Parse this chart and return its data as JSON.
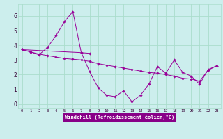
{
  "background_color": "#cceeed",
  "grid_color": "#aaddcc",
  "line_color": "#990099",
  "marker_color": "#990099",
  "xlim": [
    -0.5,
    23.5
  ],
  "ylim": [
    -0.3,
    6.8
  ],
  "yticks": [
    0,
    1,
    2,
    3,
    4,
    5,
    6
  ],
  "xticks": [
    0,
    1,
    2,
    3,
    4,
    5,
    6,
    7,
    8,
    9,
    10,
    11,
    12,
    13,
    14,
    15,
    16,
    17,
    18,
    19,
    20,
    21,
    22,
    23
  ],
  "xlabel": "Windchill (Refroidissement éolien,°C)",
  "series1": {
    "x": [
      0,
      1,
      2,
      3,
      4,
      5,
      6,
      7,
      8
    ],
    "y": [
      3.7,
      3.55,
      3.35,
      3.85,
      4.65,
      5.6,
      6.3,
      3.5,
      3.45
    ]
  },
  "series2": {
    "x": [
      0,
      1,
      2,
      3,
      4,
      5,
      6,
      7,
      8,
      9,
      10,
      11,
      12,
      13,
      14,
      15,
      16,
      17,
      18,
      19,
      20,
      21,
      22,
      23
    ],
    "y": [
      3.7,
      3.55,
      3.4,
      3.3,
      3.2,
      3.1,
      3.05,
      3.0,
      2.9,
      2.75,
      2.65,
      2.55,
      2.45,
      2.35,
      2.25,
      2.15,
      2.1,
      2.0,
      1.9,
      1.75,
      1.7,
      1.55,
      2.3,
      2.6
    ]
  },
  "series3": {
    "x": [
      0,
      7,
      8,
      9,
      10,
      11,
      12,
      13,
      14,
      15,
      16,
      17,
      18,
      19,
      20,
      21,
      22,
      23
    ],
    "y": [
      3.7,
      3.5,
      2.2,
      1.1,
      0.6,
      0.5,
      0.9,
      0.15,
      0.6,
      1.35,
      2.55,
      2.1,
      3.0,
      2.15,
      1.9,
      1.35,
      2.35,
      2.6
    ]
  }
}
